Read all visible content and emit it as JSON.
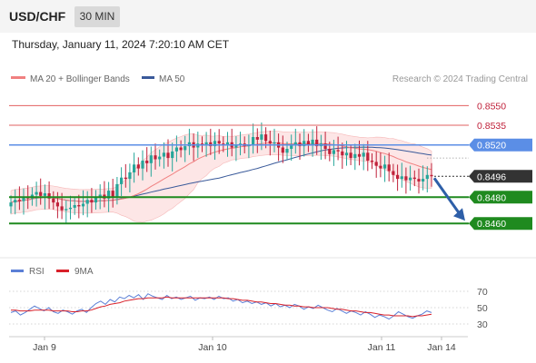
{
  "header": {
    "pair": "USD/CHF",
    "timeframe": "30 MIN",
    "datetime": "Thursday, January 11, 2024 7:20:10 AM CET"
  },
  "legend": {
    "ma20": "MA 20 + Bollinger Bands",
    "ma50": "MA 50",
    "credit": "Research © 2024 Trading Central"
  },
  "colors": {
    "up_candle": "#26a69a",
    "down_candle": "#c0213a",
    "ma20": "#f08080",
    "ma50": "#3a5a9a",
    "bollinger_fill": "#fde6e6",
    "resistance": "#e26060",
    "pivot": "#5b8ee6",
    "support": "#1f8a1f",
    "current": "#333333",
    "arrow": "#2e5fa8",
    "rsi": "#5b7fd6",
    "rsi_ma": "#d8202a"
  },
  "chart_data": [
    {
      "type": "candlestick",
      "title": "USD/CHF",
      "timeframe": "30 MIN",
      "x_ticks": [
        "Jan 9",
        "Jan 10",
        "Jan 11",
        "Jan 14"
      ],
      "ylim": [
        0.844,
        0.856
      ],
      "levels": [
        {
          "value": 0.855,
          "label": "0.8550",
          "kind": "resistance"
        },
        {
          "value": 0.8535,
          "label": "0.8535",
          "kind": "resistance"
        },
        {
          "value": 0.852,
          "label": "0.8520",
          "kind": "pivot"
        },
        {
          "value": 0.8496,
          "label": "0.8496",
          "kind": "current"
        },
        {
          "value": 0.848,
          "label": "0.8480",
          "kind": "support"
        },
        {
          "value": 0.846,
          "label": "0.8460",
          "kind": "support"
        }
      ],
      "series": [
        {
          "name": "MA 20 + Bollinger Bands"
        },
        {
          "name": "MA 50"
        }
      ],
      "closes": [
        0.8476,
        0.8478,
        0.8477,
        0.848,
        0.8479,
        0.8482,
        0.8484,
        0.8481,
        0.8483,
        0.8479,
        0.8476,
        0.8473,
        0.847,
        0.8471,
        0.8472,
        0.8474,
        0.8473,
        0.8475,
        0.8478,
        0.8476,
        0.848,
        0.8482,
        0.8479,
        0.8485,
        0.848,
        0.849,
        0.8495,
        0.8494,
        0.8499,
        0.8505,
        0.8502,
        0.8508,
        0.8506,
        0.8512,
        0.8509,
        0.8511,
        0.8514,
        0.851,
        0.8515,
        0.8518,
        0.8516,
        0.8519,
        0.8522,
        0.8518,
        0.8521,
        0.852,
        0.8522,
        0.8519,
        0.8523,
        0.8521,
        0.852,
        0.8522,
        0.8518,
        0.852,
        0.8521,
        0.8519,
        0.852,
        0.8526,
        0.8524,
        0.8528,
        0.8523,
        0.8521,
        0.8522,
        0.8518,
        0.8514,
        0.8517,
        0.852,
        0.8522,
        0.8519,
        0.8523,
        0.852,
        0.8524,
        0.8519,
        0.8521,
        0.8517,
        0.8513,
        0.8516,
        0.8515,
        0.8512,
        0.8514,
        0.851,
        0.8513,
        0.8511,
        0.8514,
        0.8508,
        0.8507,
        0.8504,
        0.8502,
        0.8505,
        0.85,
        0.8497,
        0.8494,
        0.8496,
        0.8493,
        0.8495,
        0.8494,
        0.8492,
        0.8494,
        0.8497,
        0.8496
      ]
    },
    {
      "type": "line",
      "title": "RSI",
      "series": [
        {
          "name": "RSI"
        },
        {
          "name": "9MA"
        }
      ],
      "y_ticks": [
        70,
        50,
        30
      ],
      "ylim": [
        20,
        80
      ],
      "rsi": [
        44,
        46,
        41,
        44,
        48,
        52,
        49,
        46,
        50,
        45,
        43,
        47,
        45,
        42,
        46,
        48,
        44,
        50,
        55,
        58,
        54,
        60,
        57,
        63,
        61,
        65,
        62,
        66,
        60,
        67,
        64,
        62,
        60,
        65,
        61,
        63,
        60,
        62,
        64,
        59,
        62,
        61,
        63,
        60,
        64,
        61,
        62,
        58,
        60,
        56,
        58,
        55,
        57,
        54,
        56,
        52,
        55,
        51,
        53,
        50,
        54,
        52,
        48,
        51,
        49,
        53,
        50,
        47,
        45,
        49,
        46,
        43,
        46,
        44,
        41,
        45,
        42,
        38,
        41,
        39,
        36,
        40,
        45,
        42,
        39,
        37,
        40,
        42,
        46,
        44
      ],
      "rsi_ma": [
        47,
        47,
        46,
        46,
        46,
        47,
        47,
        47,
        47,
        46,
        46,
        46,
        46,
        45,
        45,
        46,
        46,
        47,
        49,
        51,
        52,
        54,
        55,
        56,
        58,
        59,
        60,
        61,
        61,
        62,
        62,
        62,
        62,
        63,
        62,
        62,
        62,
        62,
        62,
        62,
        62,
        62,
        62,
        62,
        62,
        62,
        61,
        61,
        60,
        59,
        59,
        58,
        57,
        57,
        56,
        55,
        55,
        54,
        53,
        53,
        52,
        52,
        51,
        51,
        50,
        50,
        50,
        50,
        49,
        48,
        48,
        47,
        46,
        46,
        45,
        44,
        44,
        43,
        42,
        41,
        41,
        40,
        40,
        40,
        40,
        39,
        40,
        40,
        41,
        42
      ]
    }
  ]
}
